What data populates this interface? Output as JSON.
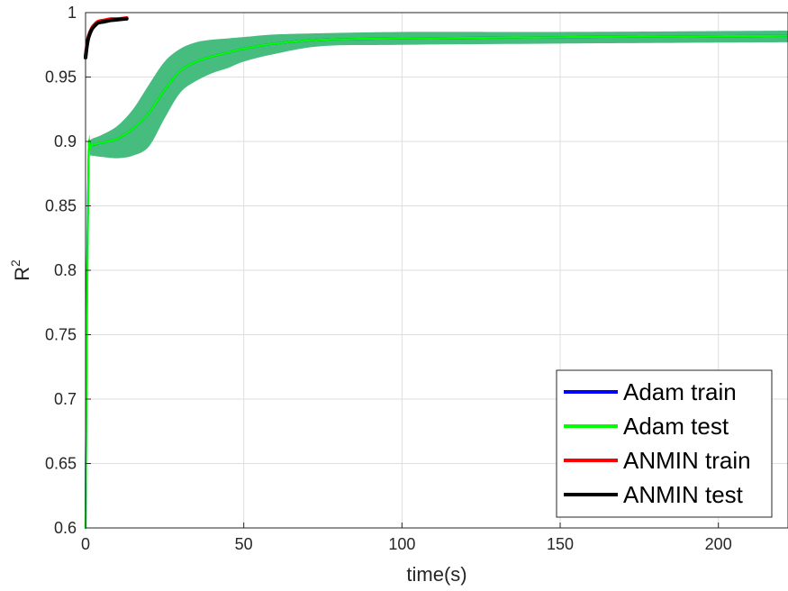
{
  "chart_data": {
    "type": "line",
    "title": "",
    "xlabel": "time(s)",
    "ylabel": "R",
    "ylabel_superscript": "2",
    "xlim": [
      0,
      222
    ],
    "ylim": [
      0.6,
      1.0
    ],
    "xticks": [
      0,
      50,
      100,
      150,
      200
    ],
    "xtick_labels": [
      "0",
      "50",
      "100",
      "150",
      "200"
    ],
    "yticks": [
      0.6,
      0.65,
      0.7,
      0.75,
      0.8,
      0.85,
      0.9,
      0.95,
      1.0
    ],
    "ytick_labels": [
      "0.6",
      "0.65",
      "0.7",
      "0.75",
      "0.8",
      "0.85",
      "0.9",
      "0.95",
      "1"
    ],
    "grid": true,
    "legend_position": "bottom-right",
    "band_color": "#3cb878",
    "series": [
      {
        "name": "Adam train",
        "color": "#0000ff",
        "x": [
          0,
          0.5,
          1,
          1.5,
          2,
          5,
          10,
          15,
          20,
          25,
          30,
          35,
          40,
          45,
          50,
          60,
          75,
          100,
          150,
          222
        ],
        "y": [
          0.6,
          0.8,
          0.893,
          0.896,
          0.897,
          0.899,
          0.902,
          0.91,
          0.922,
          0.94,
          0.955,
          0.962,
          0.966,
          0.969,
          0.972,
          0.976,
          0.979,
          0.98,
          0.981,
          0.982
        ]
      },
      {
        "name": "Adam test",
        "color": "#00ff00",
        "x": [
          0,
          0.5,
          1,
          1.5,
          2,
          5,
          10,
          15,
          20,
          25,
          30,
          35,
          40,
          45,
          50,
          60,
          75,
          100,
          150,
          222
        ],
        "y": [
          0.6,
          0.78,
          0.892,
          0.895,
          0.897,
          0.899,
          0.902,
          0.91,
          0.922,
          0.94,
          0.955,
          0.962,
          0.966,
          0.969,
          0.972,
          0.976,
          0.979,
          0.98,
          0.981,
          0.982
        ],
        "band_upper": [
          0.6,
          0.8,
          0.897,
          0.9,
          0.902,
          0.905,
          0.912,
          0.925,
          0.944,
          0.962,
          0.972,
          0.977,
          0.979,
          0.98,
          0.981,
          0.983,
          0.984,
          0.985,
          0.985,
          0.986
        ],
        "band_lower": [
          0.6,
          0.76,
          0.887,
          0.889,
          0.889,
          0.888,
          0.887,
          0.889,
          0.896,
          0.918,
          0.938,
          0.947,
          0.953,
          0.957,
          0.962,
          0.968,
          0.974,
          0.975,
          0.976,
          0.977
        ]
      },
      {
        "name": "ANMIN train",
        "color": "#ff0000",
        "x": [
          0,
          0.5,
          1,
          2,
          3,
          4,
          6,
          8,
          10,
          12,
          13
        ],
        "y": [
          0.966,
          0.976,
          0.982,
          0.988,
          0.991,
          0.993,
          0.994,
          0.995,
          0.995,
          0.9955,
          0.9958
        ]
      },
      {
        "name": "ANMIN test",
        "color": "#000000",
        "x": [
          0,
          0.5,
          1,
          2,
          3,
          4,
          6,
          8,
          10,
          12,
          13
        ],
        "y": [
          0.965,
          0.975,
          0.981,
          0.987,
          0.99,
          0.992,
          0.993,
          0.994,
          0.9945,
          0.995,
          0.9952
        ]
      }
    ]
  }
}
